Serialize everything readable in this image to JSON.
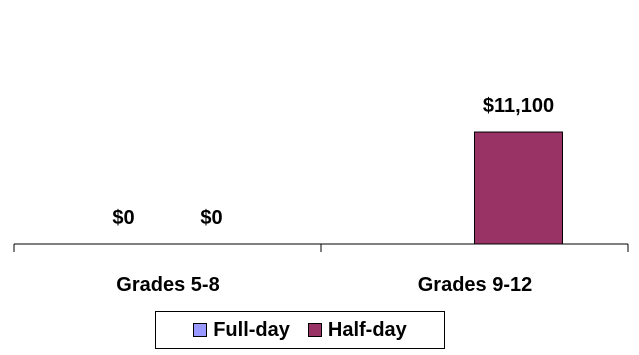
{
  "chart_data": {
    "type": "bar",
    "categories": [
      "Grades 5-8",
      "Grades 9-12"
    ],
    "series": [
      {
        "name": "Full-day",
        "values": [
          0,
          null
        ],
        "value_labels": [
          "$0",
          ""
        ],
        "color": "#9999FF"
      },
      {
        "name": "Half-day",
        "values": [
          0,
          11100
        ],
        "value_labels": [
          "$0",
          "$11,100"
        ],
        "color": "#993366"
      }
    ],
    "ylim": [
      0,
      22800
    ],
    "grid": false,
    "legend_position": "bottom"
  }
}
